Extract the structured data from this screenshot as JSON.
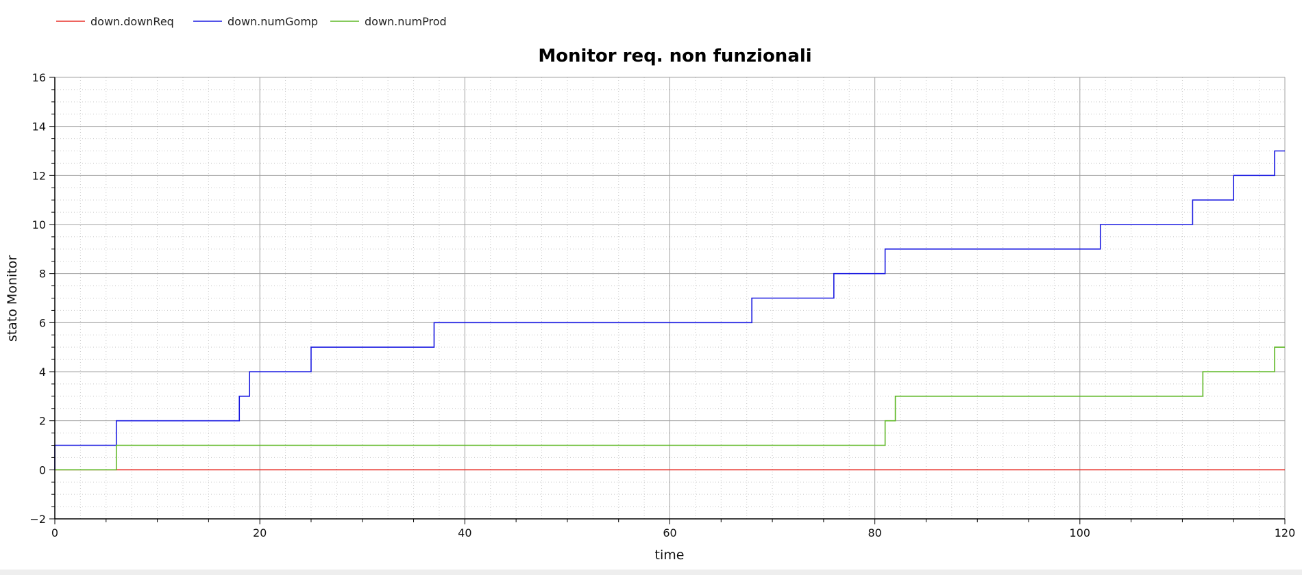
{
  "chart_data": {
    "type": "line",
    "step": true,
    "title": "Monitor req. non funzionali",
    "xlabel": "time",
    "ylabel": "stato Monitor",
    "xlim": [
      0,
      120
    ],
    "ylim": [
      -2,
      16
    ],
    "xticks": [
      0,
      20,
      40,
      60,
      80,
      100,
      120
    ],
    "yticks": [
      -2,
      0,
      2,
      4,
      6,
      8,
      10,
      12,
      14,
      16
    ],
    "y_tick_labels": [
      "−2",
      "0",
      "2",
      "4",
      "6",
      "8",
      "10",
      "12",
      "14",
      "16"
    ],
    "grid": true,
    "legend_position": "top-left",
    "series": [
      {
        "name": "down.downReq",
        "color": "#e8302a",
        "points": [
          [
            0,
            0
          ],
          [
            120,
            0
          ]
        ]
      },
      {
        "name": "down.numGomp",
        "color": "#1a1ae0",
        "points": [
          [
            0,
            0
          ],
          [
            0,
            1
          ],
          [
            6,
            1
          ],
          [
            6,
            2
          ],
          [
            18,
            2
          ],
          [
            18,
            3
          ],
          [
            19,
            3
          ],
          [
            19,
            4
          ],
          [
            25,
            4
          ],
          [
            25,
            5
          ],
          [
            37,
            5
          ],
          [
            37,
            6
          ],
          [
            68,
            6
          ],
          [
            68,
            7
          ],
          [
            76,
            7
          ],
          [
            76,
            8
          ],
          [
            81,
            8
          ],
          [
            81,
            9
          ],
          [
            102,
            9
          ],
          [
            102,
            10
          ],
          [
            111,
            10
          ],
          [
            111,
            11
          ],
          [
            115,
            11
          ],
          [
            115,
            12
          ],
          [
            119,
            12
          ],
          [
            119,
            13
          ],
          [
            120,
            13
          ]
        ]
      },
      {
        "name": "down.numProd",
        "color": "#5fb826",
        "points": [
          [
            0,
            0
          ],
          [
            6,
            0
          ],
          [
            6,
            1
          ],
          [
            81,
            1
          ],
          [
            81,
            2
          ],
          [
            82,
            2
          ],
          [
            82,
            3
          ],
          [
            112,
            3
          ],
          [
            112,
            4
          ],
          [
            119,
            4
          ],
          [
            119,
            5
          ],
          [
            120,
            5
          ]
        ]
      }
    ]
  }
}
